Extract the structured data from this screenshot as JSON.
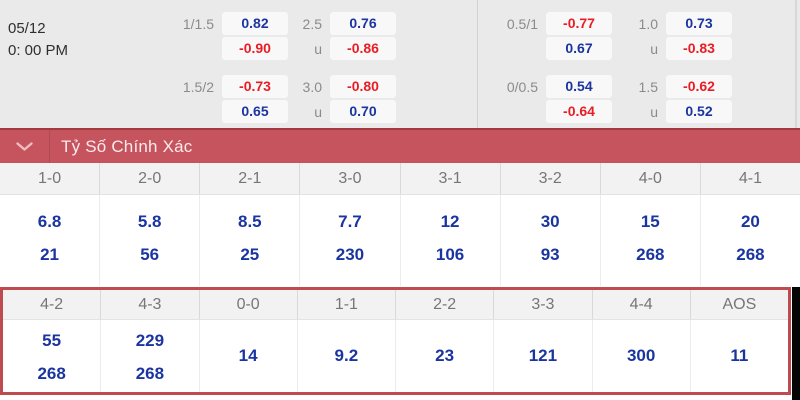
{
  "match": {
    "date": "05/12",
    "time": "0: 00 PM"
  },
  "odds": {
    "groups": [
      {
        "rows": [
          {
            "label": "1/1.5",
            "value": "0.82"
          },
          {
            "label": "",
            "value": "-0.90"
          },
          {
            "label": "1.5/2",
            "value": "-0.73"
          },
          {
            "label": "",
            "value": "0.65"
          }
        ]
      },
      {
        "rows": [
          {
            "label": "2.5",
            "value": "0.76"
          },
          {
            "label": "u",
            "value": "-0.86"
          },
          {
            "label": "3.0",
            "value": "-0.80"
          },
          {
            "label": "u",
            "value": "0.70"
          }
        ]
      },
      {
        "rows": [
          {
            "label": "0.5/1",
            "value": "-0.77"
          },
          {
            "label": "",
            "value": "0.67"
          },
          {
            "label": "0/0.5",
            "value": "0.54"
          },
          {
            "label": "",
            "value": "-0.64"
          }
        ]
      },
      {
        "rows": [
          {
            "label": "1.0",
            "value": "0.73"
          },
          {
            "label": "u",
            "value": "-0.83"
          },
          {
            "label": "1.5",
            "value": "-0.62"
          },
          {
            "label": "u",
            "value": "0.52"
          }
        ]
      }
    ]
  },
  "section": {
    "title": "Tỷ Số Chính Xác",
    "chevron_icon": "chevron-down"
  },
  "correct_score": {
    "top": [
      {
        "score": "1-0",
        "values": [
          "6.8",
          "21"
        ]
      },
      {
        "score": "2-0",
        "values": [
          "5.8",
          "56"
        ]
      },
      {
        "score": "2-1",
        "values": [
          "8.5",
          "25"
        ]
      },
      {
        "score": "3-0",
        "values": [
          "7.7",
          "230"
        ]
      },
      {
        "score": "3-1",
        "values": [
          "12",
          "106"
        ]
      },
      {
        "score": "3-2",
        "values": [
          "30",
          "93"
        ]
      },
      {
        "score": "4-0",
        "values": [
          "15",
          "268"
        ]
      },
      {
        "score": "4-1",
        "values": [
          "20",
          "268"
        ]
      }
    ],
    "bottom": [
      {
        "score": "4-2",
        "values": [
          "55",
          "268"
        ]
      },
      {
        "score": "4-3",
        "values": [
          "229",
          "268"
        ]
      },
      {
        "score": "0-0",
        "values": [
          "14"
        ]
      },
      {
        "score": "1-1",
        "values": [
          "9.2"
        ]
      },
      {
        "score": "2-2",
        "values": [
          "23"
        ]
      },
      {
        "score": "3-3",
        "values": [
          "121"
        ]
      },
      {
        "score": "4-4",
        "values": [
          "300"
        ]
      },
      {
        "score": "AOS",
        "values": [
          "11"
        ]
      }
    ]
  },
  "colors": {
    "value_positive": "#1b35a0",
    "value_negative": "#e81e26",
    "header_bar": "#c5545e",
    "header_bar_top": "#a23a40",
    "header_divider": "#b24a52",
    "table_border": "#bf4a50",
    "chevron": "#f2bcc0"
  }
}
